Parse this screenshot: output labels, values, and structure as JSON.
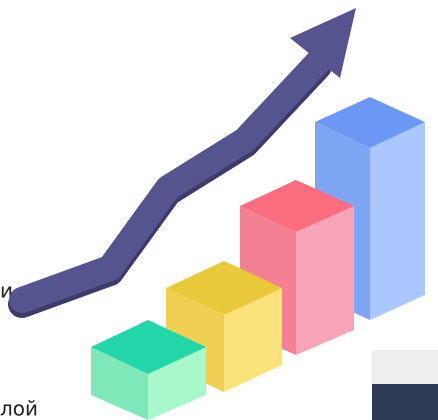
{
  "text_fragments": {
    "line_1": "и.",
    "line_2": "лой"
  }
}
